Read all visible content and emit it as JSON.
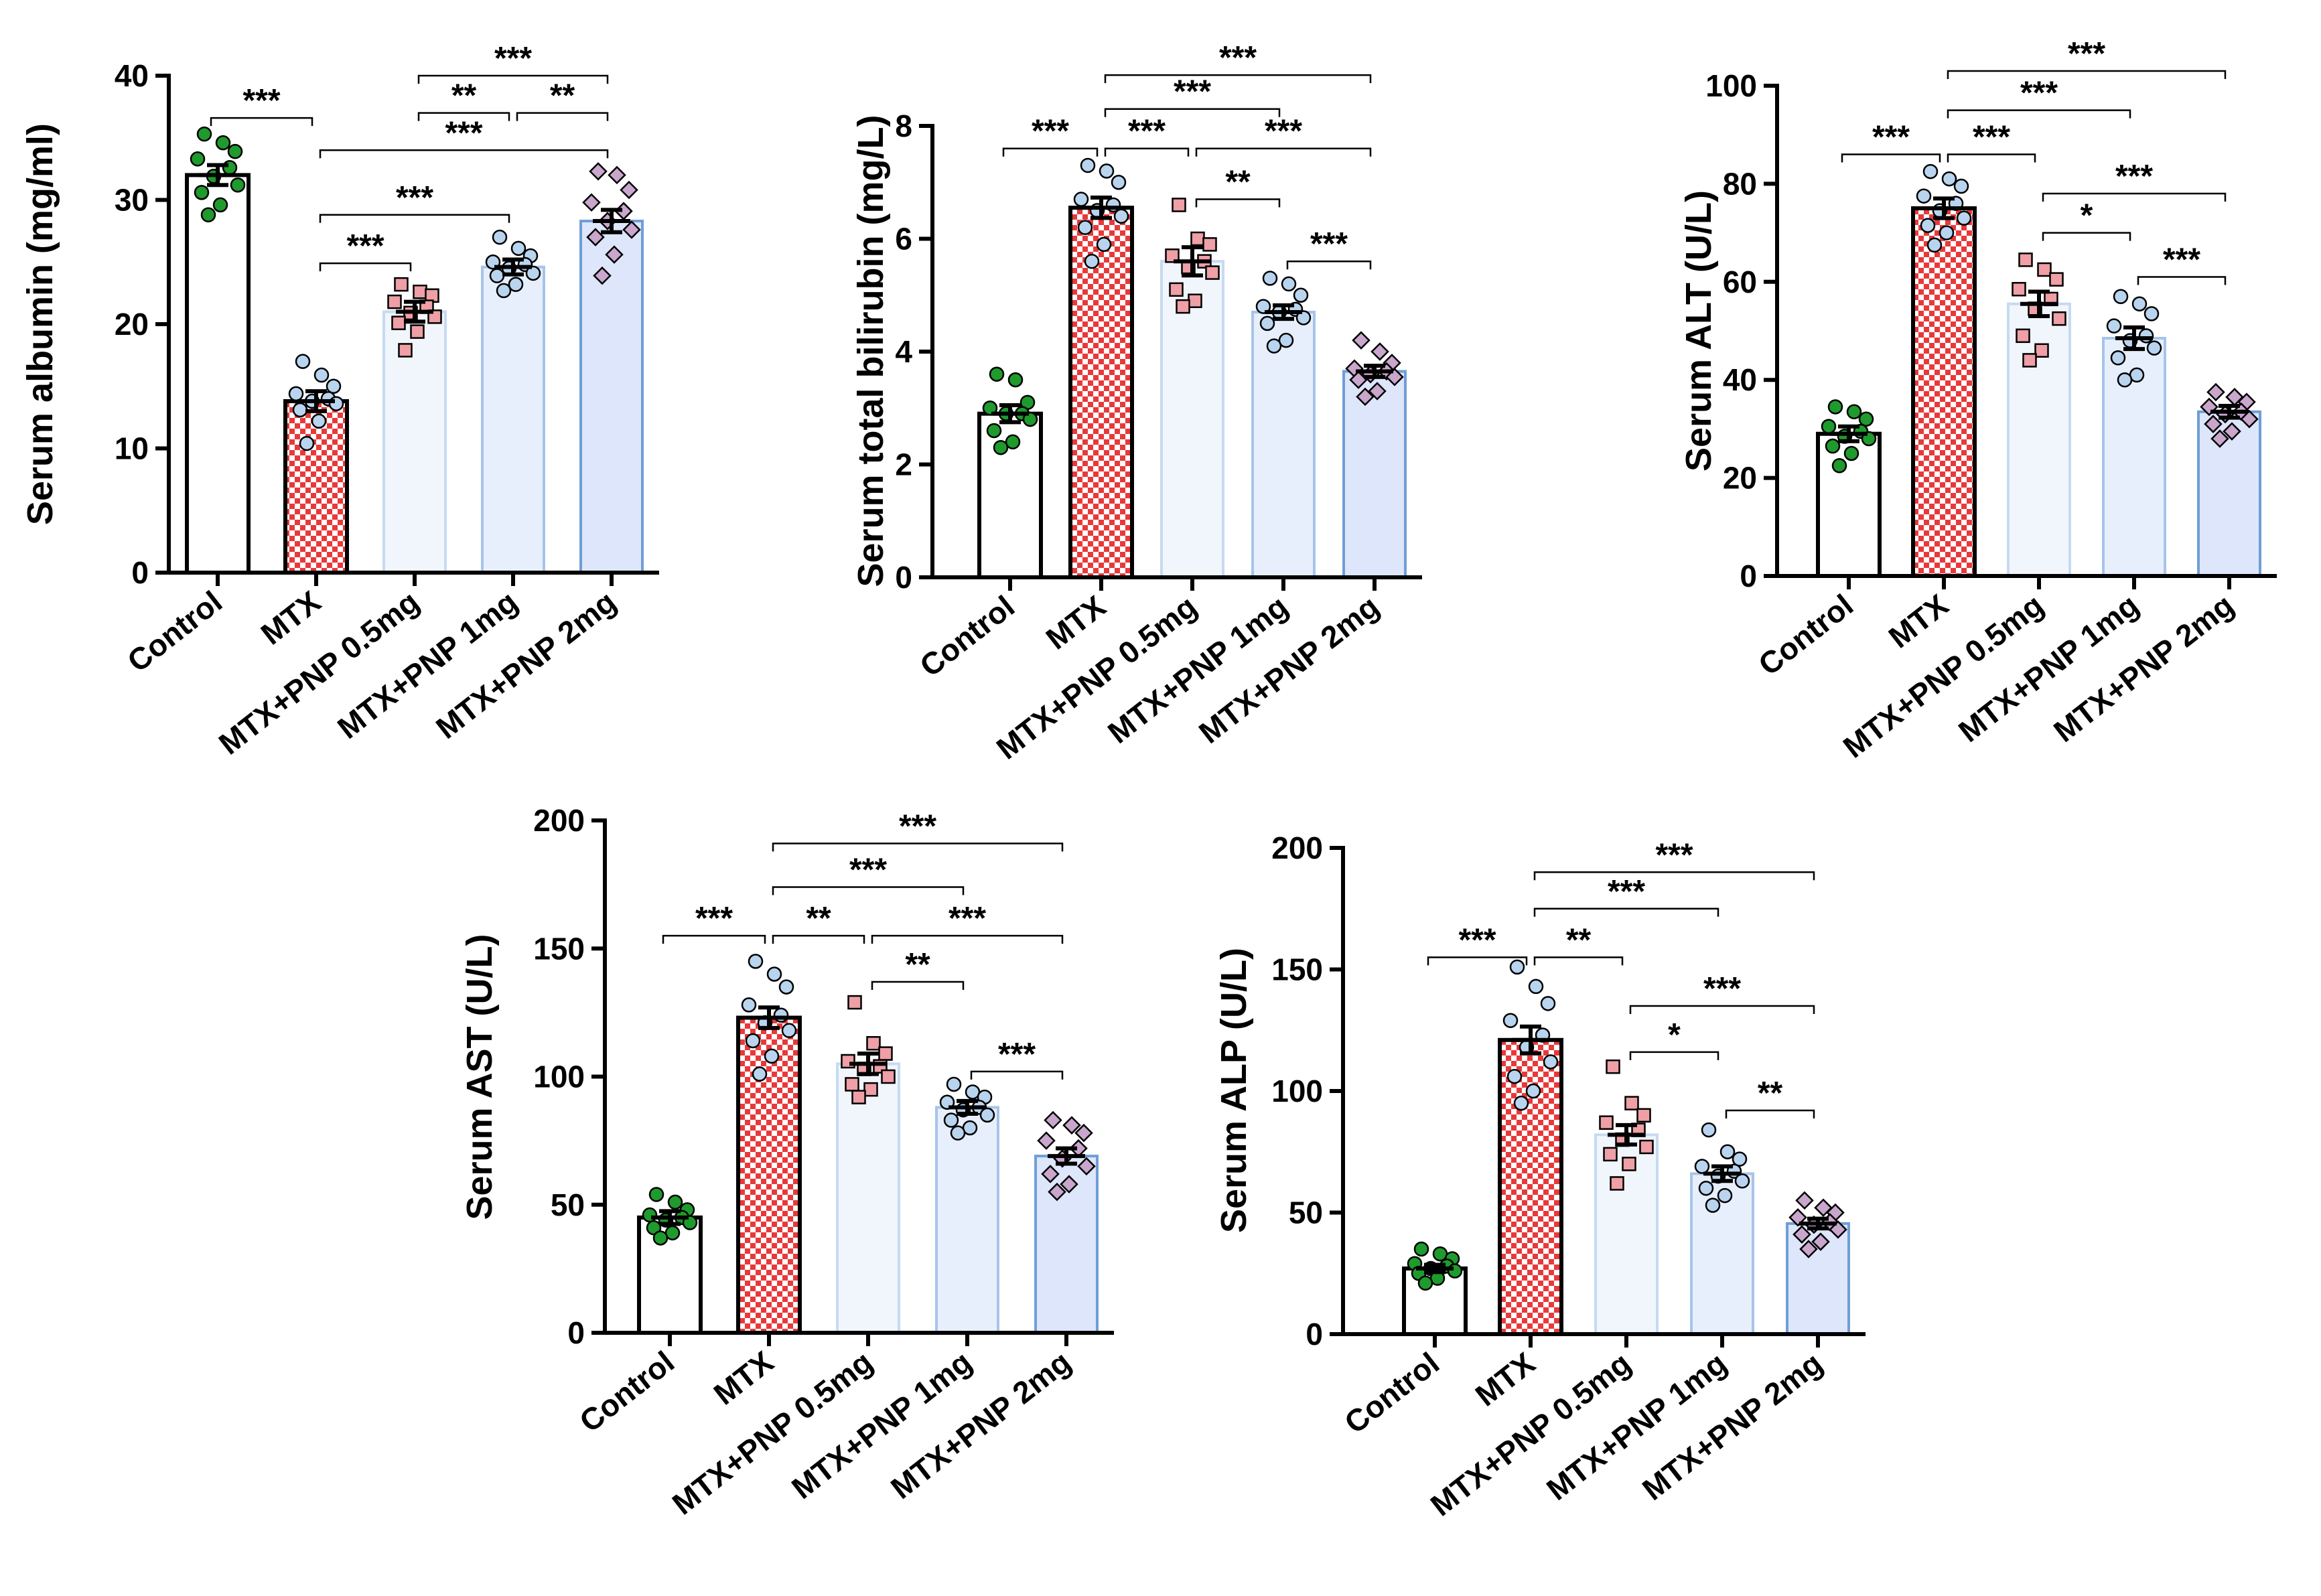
{
  "colors": {
    "control_fill": "#ffffff",
    "control_stroke": "#000000",
    "mtx_red": "#e8393a",
    "mtx_white": "#ffffff",
    "mtx_stroke": "#000000",
    "pnp05_fill": "#f1f6fd",
    "pnp05_stroke": "#c6daf2",
    "pnp1_fill": "#e8effc",
    "pnp1_stroke": "#a7c4ea",
    "pnp2_fill": "#dde6fb",
    "pnp2_stroke": "#6f9ed6",
    "pt_control": "#1f9a2c",
    "pt_mtx": "#b9d4ef",
    "pt_pnp05": "#ef9fa6",
    "pt_pnp1": "#b9d4ef",
    "pt_pnp2": "#c9a6cc"
  },
  "chart_data": [
    {
      "type": "bar",
      "title": "",
      "ylabel": "Serum albumin (mg/ml)",
      "xlabel": "",
      "ylim": [
        0,
        40
      ],
      "yticks": [
        0,
        10,
        20,
        30,
        40
      ],
      "ytick_labels": [
        "0",
        "10",
        "20",
        "30",
        "40"
      ],
      "categories": [
        "Control",
        "MTX",
        "MTX+PNP 0.5mg",
        "MTX+PNP 1mg",
        "MTX+PNP 2mg"
      ],
      "values": [
        32.0,
        13.8,
        21.0,
        24.6,
        28.3
      ],
      "sem": [
        0.8,
        0.8,
        0.8,
        0.6,
        0.9
      ],
      "points": [
        [
          35.3,
          34.6,
          33.9,
          33.3,
          32.6,
          31.9,
          31.2,
          30.6,
          29.6,
          28.8
        ],
        [
          17.0,
          15.9,
          15.0,
          14.4,
          14.0,
          13.8,
          13.6,
          13.1,
          12.2,
          10.4
        ],
        [
          23.2,
          22.6,
          22.3,
          21.8,
          21.4,
          20.9,
          20.6,
          20.1,
          19.4,
          17.9
        ],
        [
          27.0,
          26.1,
          25.5,
          25.0,
          24.8,
          24.5,
          24.1,
          23.9,
          23.2,
          22.7
        ],
        [
          32.3,
          32.0,
          30.8,
          29.8,
          29.1,
          28.3,
          27.6,
          27.0,
          25.6,
          23.9
        ]
      ],
      "significance": [
        {
          "from": 0,
          "to": 1,
          "label": "***",
          "y": 36.6
        },
        {
          "from": 1,
          "to": 2,
          "label": "***",
          "y": 24.9
        },
        {
          "from": 1,
          "to": 3,
          "label": "***",
          "y": 28.8
        },
        {
          "from": 1,
          "to": 4,
          "label": "***",
          "y": 34.0
        },
        {
          "from": 2,
          "to": 3,
          "label": "**",
          "y": 37.0
        },
        {
          "from": 3,
          "to": 4,
          "label": "**",
          "y": 37.0
        },
        {
          "from": 2,
          "to": 4,
          "label": "***",
          "y": 40.0
        }
      ]
    },
    {
      "type": "bar",
      "title": "",
      "ylabel": "Serum total bilirubin (mg/L)",
      "xlabel": "",
      "ylim": [
        0,
        8
      ],
      "yticks": [
        0,
        2,
        4,
        6,
        8
      ],
      "ytick_labels": [
        "0",
        "2",
        "4",
        "6",
        "8"
      ],
      "categories": [
        "Control",
        "MTX",
        "MTX+PNP 0.5mg",
        "MTX+PNP 1mg",
        "MTX+PNP 2mg"
      ],
      "values": [
        2.9,
        6.55,
        5.6,
        4.7,
        3.65
      ],
      "sem": [
        0.15,
        0.18,
        0.25,
        0.12,
        0.1
      ],
      "points": [
        [
          3.6,
          3.5,
          3.1,
          3.0,
          2.9,
          2.9,
          2.8,
          2.6,
          2.4,
          2.3
        ],
        [
          7.3,
          7.2,
          7.0,
          6.7,
          6.6,
          6.5,
          6.4,
          6.2,
          5.9,
          5.6
        ],
        [
          6.6,
          6.0,
          5.9,
          5.7,
          5.6,
          5.5,
          5.4,
          5.1,
          4.9,
          4.8
        ],
        [
          5.3,
          5.2,
          5.0,
          4.8,
          4.75,
          4.7,
          4.6,
          4.5,
          4.2,
          4.1
        ],
        [
          4.2,
          4.0,
          3.8,
          3.7,
          3.65,
          3.6,
          3.55,
          3.5,
          3.3,
          3.2
        ]
      ],
      "significance": [
        {
          "from": 0,
          "to": 1,
          "label": "***",
          "y": 7.6
        },
        {
          "from": 1,
          "to": 2,
          "label": "***",
          "y": 7.6
        },
        {
          "from": 1,
          "to": 4,
          "label": "***",
          "y": 8.9
        },
        {
          "from": 1,
          "to": 3,
          "label": "***",
          "y": 8.3
        },
        {
          "from": 2,
          "to": 4,
          "label": "***",
          "y": 7.6
        },
        {
          "from": 2,
          "to": 3,
          "label": "**",
          "y": 6.7
        },
        {
          "from": 3,
          "to": 4,
          "label": "***",
          "y": 5.6
        }
      ]
    },
    {
      "type": "bar",
      "title": "",
      "ylabel": "Serum ALT (U/L)",
      "xlabel": "",
      "ylim": [
        0,
        100
      ],
      "yticks": [
        0,
        20,
        40,
        60,
        80,
        100
      ],
      "ytick_labels": [
        "0",
        "20",
        "40",
        "60",
        "80",
        "100"
      ],
      "categories": [
        "Control",
        "MTX",
        "MTX+PNP 0.5mg",
        "MTX+PNP 1mg",
        "MTX+PNP 2mg"
      ],
      "values": [
        29.0,
        75.0,
        55.5,
        48.5,
        33.5
      ],
      "sem": [
        1.5,
        2.0,
        2.5,
        2.2,
        1.2
      ],
      "points": [
        [
          34.5,
          33.5,
          32.0,
          30.5,
          29.5,
          28.5,
          28.0,
          26.5,
          25.0,
          22.5
        ],
        [
          82.5,
          81.0,
          79.5,
          77.5,
          76.0,
          74.5,
          73.0,
          71.5,
          70.0,
          67.5
        ],
        [
          64.5,
          62.5,
          60.5,
          58.5,
          56.5,
          54.5,
          52.5,
          49.0,
          46.0,
          44.0
        ],
        [
          57.0,
          55.5,
          53.5,
          51.0,
          49.0,
          48.0,
          46.5,
          44.5,
          41.0,
          40.0
        ],
        [
          37.5,
          36.5,
          35.5,
          34.5,
          33.5,
          33.0,
          32.0,
          31.0,
          29.5,
          28.0
        ]
      ],
      "significance": [
        {
          "from": 0,
          "to": 1,
          "label": "***",
          "y": 86.0
        },
        {
          "from": 1,
          "to": 2,
          "label": "***",
          "y": 86.0
        },
        {
          "from": 1,
          "to": 3,
          "label": "***",
          "y": 95.0
        },
        {
          "from": 1,
          "to": 4,
          "label": "***",
          "y": 103.0
        },
        {
          "from": 2,
          "to": 4,
          "label": "***",
          "y": 78.0
        },
        {
          "from": 2,
          "to": 3,
          "label": "*",
          "y": 70.0
        },
        {
          "from": 3,
          "to": 4,
          "label": "***",
          "y": 61.0
        }
      ]
    },
    {
      "type": "bar",
      "title": "",
      "ylabel": "Serum AST (U/L)",
      "xlabel": "",
      "ylim": [
        0,
        200
      ],
      "yticks": [
        0,
        50,
        100,
        150,
        200
      ],
      "ytick_labels": [
        "0",
        "50",
        "100",
        "150",
        "200"
      ],
      "categories": [
        "Control",
        "MTX",
        "MTX+PNP 0.5mg",
        "MTX+PNP 1mg",
        "MTX+PNP 2mg"
      ],
      "values": [
        45.0,
        123.0,
        105.0,
        88.0,
        69.0
      ],
      "sem": [
        2.5,
        4.0,
        4.0,
        2.5,
        3.0
      ],
      "points": [
        [
          54.0,
          51.0,
          48.0,
          46.0,
          45.0,
          44.0,
          43.0,
          41.0,
          39.0,
          37.0
        ],
        [
          145.0,
          140.0,
          135.0,
          128.0,
          124.0,
          121.0,
          118.0,
          114.0,
          108.0,
          101.0
        ],
        [
          129.0,
          113.0,
          109.0,
          106.0,
          104.0,
          103.0,
          100.0,
          97.0,
          95.0,
          92.0
        ],
        [
          97.0,
          94.0,
          92.0,
          90.0,
          88.0,
          87.0,
          85.0,
          83.0,
          80.0,
          78.0
        ],
        [
          83.0,
          81.0,
          78.0,
          75.0,
          72.0,
          68.0,
          65.0,
          62.0,
          58.0,
          55.0
        ]
      ],
      "significance": [
        {
          "from": 0,
          "to": 1,
          "label": "***",
          "y": 155.0
        },
        {
          "from": 1,
          "to": 2,
          "label": "**",
          "y": 155.0
        },
        {
          "from": 1,
          "to": 3,
          "label": "***",
          "y": 174.0
        },
        {
          "from": 1,
          "to": 4,
          "label": "***",
          "y": 191.0
        },
        {
          "from": 2,
          "to": 4,
          "label": "***",
          "y": 155.0
        },
        {
          "from": 2,
          "to": 3,
          "label": "**",
          "y": 137.0
        },
        {
          "from": 3,
          "to": 4,
          "label": "***",
          "y": 102.0
        }
      ]
    },
    {
      "type": "bar",
      "title": "",
      "ylabel": "Serum ALP (U/L)",
      "xlabel": "",
      "ylim": [
        0,
        200
      ],
      "yticks": [
        0,
        50,
        100,
        150,
        200
      ],
      "ytick_labels": [
        "0",
        "50",
        "100",
        "150",
        "200"
      ],
      "categories": [
        "Control",
        "MTX",
        "MTX+PNP 0.5mg",
        "MTX+PNP 1mg",
        "MTX+PNP 2mg"
      ],
      "values": [
        27.0,
        121.0,
        82.0,
        66.0,
        45.5
      ],
      "sem": [
        1.5,
        5.5,
        4.0,
        3.0,
        2.0
      ],
      "points": [
        [
          35.0,
          33.0,
          31.0,
          29.0,
          28.0,
          27.0,
          26.0,
          25.0,
          23.0,
          21.0
        ],
        [
          151.0,
          143.0,
          136.0,
          129.0,
          123.0,
          118.0,
          112.0,
          106.0,
          100.0,
          95.0
        ],
        [
          110.0,
          95.0,
          90.0,
          87.0,
          84.0,
          80.0,
          77.0,
          74.0,
          70.0,
          62.0
        ],
        [
          84.0,
          75.0,
          72.0,
          69.0,
          67.0,
          65.0,
          63.0,
          60.0,
          57.0,
          53.0
        ],
        [
          55.0,
          52.0,
          50.0,
          48.0,
          46.0,
          45.0,
          43.0,
          41.0,
          38.0,
          35.0
        ]
      ],
      "significance": [
        {
          "from": 0,
          "to": 1,
          "label": "***",
          "y": 155.0
        },
        {
          "from": 1,
          "to": 2,
          "label": "**",
          "y": 155.0
        },
        {
          "from": 1,
          "to": 3,
          "label": "***",
          "y": 175.0
        },
        {
          "from": 1,
          "to": 4,
          "label": "***",
          "y": 190.0
        },
        {
          "from": 2,
          "to": 4,
          "label": "***",
          "y": 135.0
        },
        {
          "from": 2,
          "to": 3,
          "label": "*",
          "y": 116.0
        },
        {
          "from": 3,
          "to": 4,
          "label": "**",
          "y": 92.0
        }
      ]
    }
  ]
}
